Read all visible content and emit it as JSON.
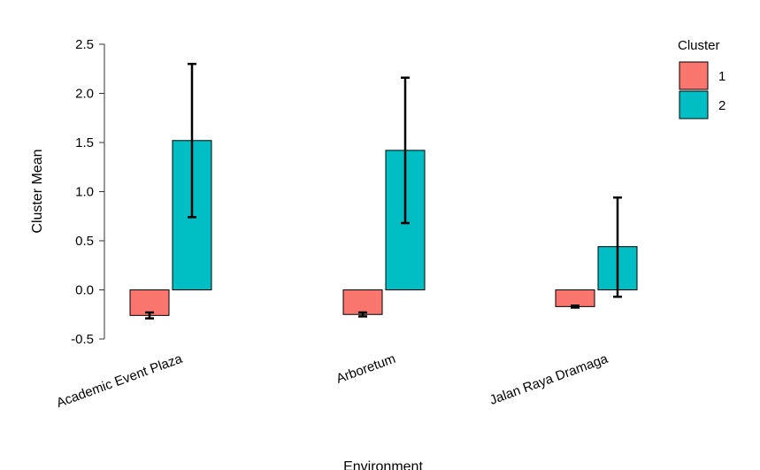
{
  "chart_data": {
    "type": "bar",
    "title": "",
    "xlabel": "Environment",
    "ylabel": "Cluster Mean",
    "categories": [
      "Academic Event Plaza",
      "Arboretum",
      "Jalan Raya Dramaga"
    ],
    "series": [
      {
        "name": "1",
        "color": "#f8766d",
        "values": [
          -0.26,
          -0.25,
          -0.17
        ],
        "err_low": [
          -0.29,
          -0.27,
          -0.18
        ],
        "err_high": [
          -0.23,
          -0.23,
          -0.16
        ]
      },
      {
        "name": "2",
        "color": "#00bfc4",
        "values": [
          1.52,
          1.42,
          0.44
        ],
        "err_low": [
          0.74,
          0.68,
          -0.07
        ],
        "err_high": [
          2.3,
          2.16,
          0.94
        ]
      }
    ],
    "ylim": [
      -0.5,
      2.5
    ],
    "yticks": [
      "-0.5",
      "0.0",
      "0.5",
      "1.0",
      "1.5",
      "2.0",
      "2.5"
    ],
    "legend": {
      "title": "Cluster",
      "position": "top-right"
    },
    "grid": false
  }
}
